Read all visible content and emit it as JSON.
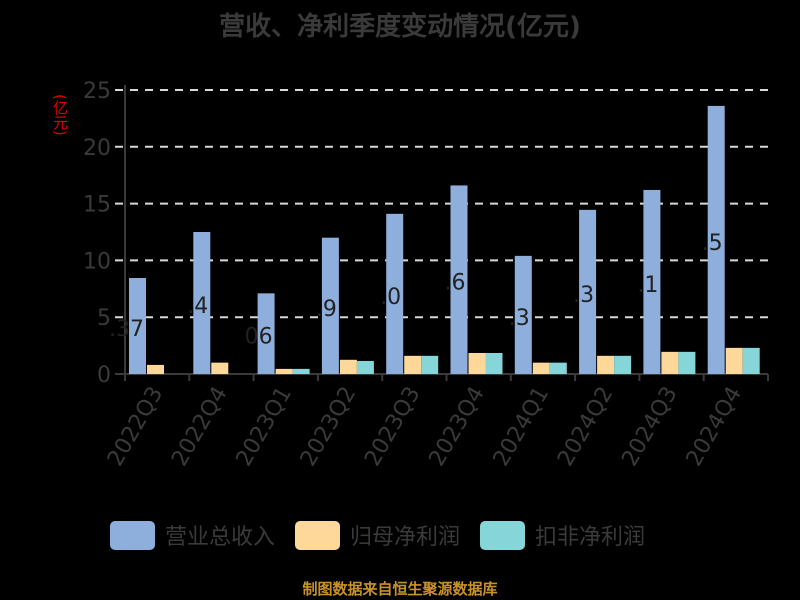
{
  "title": "营收、净利季度变动情况(亿元)",
  "y_unit": "(亿元)",
  "legend": [
    {
      "label": "营业总收入",
      "color": "#8eaedc"
    },
    {
      "label": "归母净利润",
      "color": "#fed89a"
    },
    {
      "label": "扣非净利润",
      "color": "#86d5d8"
    }
  ],
  "footer": "制图数据来自恒生聚源数据库",
  "colors": {
    "background": "#000000",
    "axis": "#3a3a3a",
    "grid": "#d9d9d9",
    "unit": "#e00000",
    "footer": "#c8922a"
  },
  "chart_data": {
    "type": "bar",
    "title": "营收、净利季度变动情况(亿元)",
    "xlabel": "",
    "ylabel": "(亿元)",
    "ylim": [
      0,
      25
    ],
    "yticks": [
      0,
      5,
      10,
      15,
      20,
      25
    ],
    "grid": true,
    "legend_position": "bottom",
    "categories": [
      "2022Q3",
      "2022Q4",
      "2023Q1",
      "2023Q2",
      "2023Q3",
      "2023Q4",
      "2024Q1",
      "2024Q2",
      "2024Q3",
      "2024Q4"
    ],
    "series": [
      {
        "name": "营业总收入",
        "color": "#8eaedc",
        "values": [
          8.45,
          12.5,
          7.1,
          12.0,
          14.1,
          16.6,
          10.4,
          14.45,
          16.2,
          23.6
        ]
      },
      {
        "name": "归母净利润",
        "color": "#fed89a",
        "values": [
          0.8,
          1.0,
          0.45,
          1.25,
          1.6,
          1.85,
          1.0,
          1.6,
          1.95,
          2.3
        ]
      },
      {
        "name": "扣非净利润",
        "color": "#86d5d8",
        "values": [
          null,
          null,
          0.45,
          1.15,
          1.6,
          1.85,
          1.0,
          1.6,
          1.95,
          2.3
        ]
      }
    ],
    "partial_data_labels": [
      ".37",
      ".4",
      "06",
      ".9",
      ".0",
      ".6",
      ".3",
      ".3",
      ".1",
      ".5"
    ]
  }
}
